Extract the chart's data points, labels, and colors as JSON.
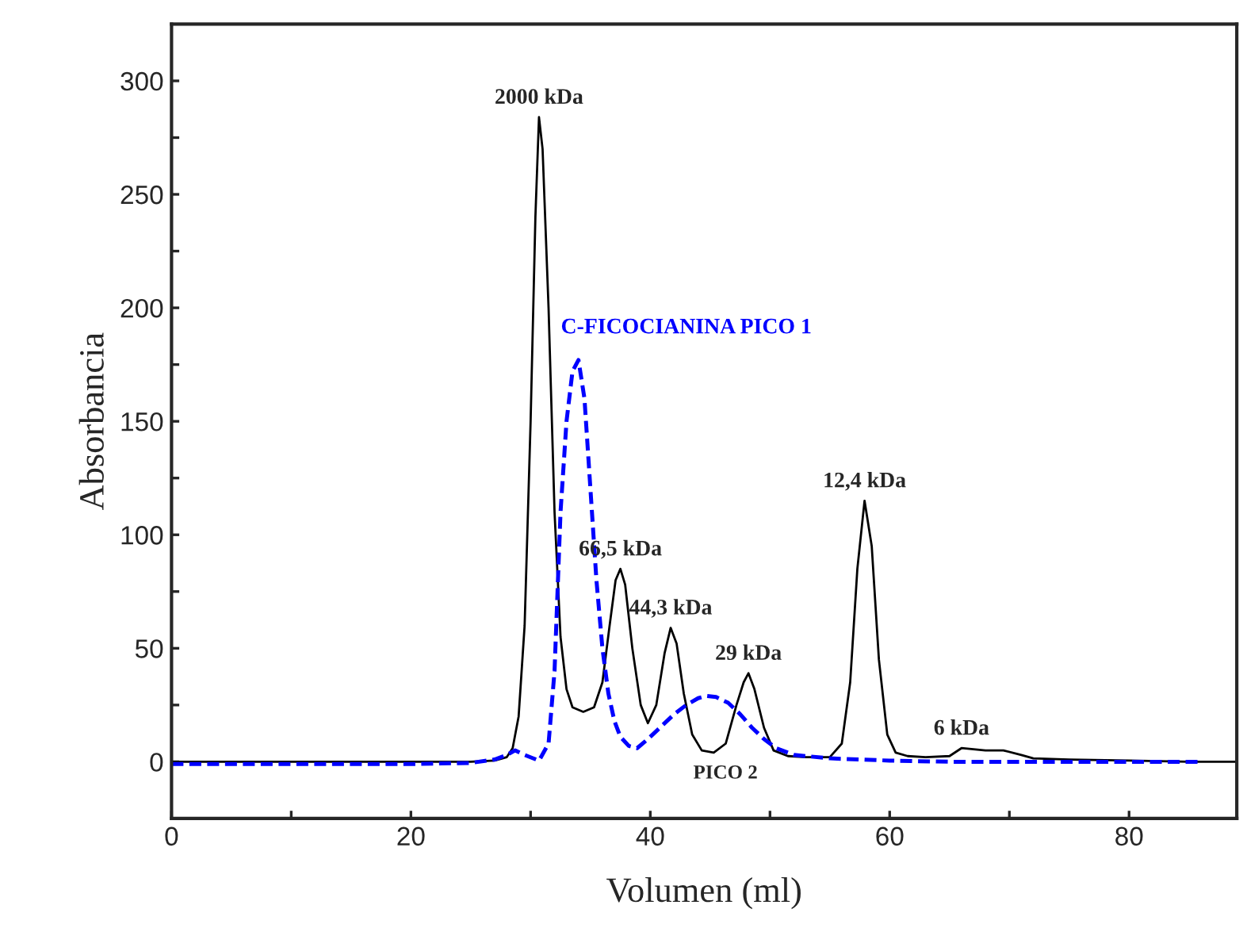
{
  "chart_data": {
    "type": "line",
    "xlabel": "Volumen (ml)",
    "ylabel": "Absorbancia",
    "xlim": [
      0,
      89
    ],
    "xticks": [
      0,
      {
        "value": 10,
        "label": null
      },
      20,
      {
        "value": 30,
        "label": null
      },
      40,
      {
        "value": 50,
        "label": null
      },
      60,
      {
        "value": 70,
        "label": null
      },
      80
    ],
    "ylim": [
      -25,
      325
    ],
    "yticks": [
      {
        "value": -25,
        "label": null
      },
      0,
      {
        "value": 25,
        "label": null
      },
      50,
      {
        "value": 75,
        "label": null
      },
      100,
      {
        "value": 125,
        "label": null
      },
      150,
      {
        "value": 175,
        "label": null
      },
      200,
      {
        "value": 225,
        "label": null
      },
      250,
      {
        "value": 275,
        "label": null
      },
      300
    ],
    "grid": false,
    "legend": false,
    "series": [
      {
        "color": "#000000",
        "line_style": "solid",
        "x": [
          0,
          5,
          10,
          15,
          20,
          25,
          27,
          28,
          28.5,
          29,
          29.5,
          30,
          30.4,
          30.7,
          31,
          31.5,
          32,
          32.5,
          33,
          33.5,
          34.4,
          35.3,
          36,
          36.6,
          37.1,
          37.5,
          37.9,
          38.5,
          39.2,
          39.8,
          40.5,
          41.2,
          41.7,
          42.2,
          42.8,
          43.5,
          44.3,
          45.3,
          46.3,
          47.2,
          47.8,
          48.2,
          48.7,
          49.5,
          50.3,
          51.5,
          53,
          55,
          56,
          56.7,
          57.3,
          57.9,
          58.5,
          59.1,
          59.8,
          60.5,
          61.5,
          63,
          65,
          66,
          67,
          68,
          69.5,
          71,
          72,
          75,
          80,
          85,
          89
        ],
        "values": [
          0,
          0,
          0,
          0,
          0,
          0,
          0.5,
          2,
          6,
          20,
          60,
          150,
          240,
          284,
          270,
          200,
          110,
          55,
          32,
          24,
          22,
          24,
          35,
          60,
          80,
          85,
          78,
          50,
          25,
          17,
          25,
          48,
          59,
          52,
          30,
          12,
          5,
          4,
          8,
          25,
          35,
          39,
          32,
          15,
          5,
          2.5,
          2,
          2,
          8,
          35,
          85,
          115,
          95,
          45,
          12,
          4,
          2.5,
          2,
          2.5,
          6,
          5.5,
          5,
          5,
          3,
          1.5,
          1,
          0.5,
          0,
          0
        ]
      },
      {
        "name": "C-FICOCIANINA PICO 1",
        "color": "#0000ff",
        "line_style": "dashed",
        "x": [
          0,
          5,
          10,
          15,
          20,
          25,
          27,
          28,
          28.7,
          29.5,
          30.7,
          31.5,
          32,
          32.5,
          33,
          33.5,
          34,
          34.5,
          35,
          35.5,
          36,
          36.5,
          37,
          37.5,
          38.2,
          38.9,
          39.8,
          41,
          42,
          43,
          44,
          44.7,
          45.5,
          46.5,
          47.5,
          48.5,
          49.5,
          50.5,
          52,
          55,
          60,
          65,
          70,
          75,
          80,
          86
        ],
        "values": [
          -1,
          -1,
          -1,
          -1,
          -1,
          -0.5,
          1,
          3,
          5,
          3,
          0.5,
          8,
          40,
          110,
          150,
          172,
          177,
          160,
          120,
          80,
          50,
          30,
          18,
          11,
          7,
          6,
          10,
          16,
          21,
          25,
          28,
          29,
          28.5,
          26,
          21,
          15,
          10,
          6,
          3,
          1.5,
          0.5,
          0,
          0,
          0,
          0,
          0
        ]
      }
    ],
    "annotations": [
      {
        "text": "2000 kDa",
        "x": 30.7,
        "y": 284
      },
      {
        "text": "66,5 kDa",
        "x": 37.5,
        "y": 85
      },
      {
        "text": "44,3 kDa",
        "x": 41.7,
        "y": 59
      },
      {
        "text": "29 kDa",
        "x": 48.2,
        "y": 39
      },
      {
        "text": "12,4 kDa",
        "x": 57.9,
        "y": 115
      },
      {
        "text": "6 kDa",
        "x": 66,
        "y": 6
      },
      "PICO 2"
    ]
  }
}
